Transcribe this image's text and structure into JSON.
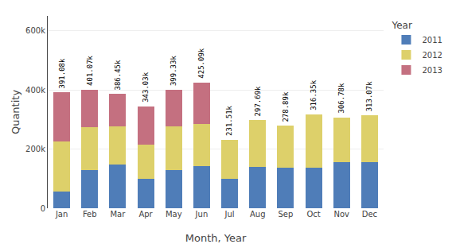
{
  "chart_data": {
    "type": "bar",
    "stacked": true,
    "xlabel": "Month, Year",
    "ylabel": "Quantity",
    "legend_title": "Year",
    "legend": "upper right",
    "grid": "y",
    "categories": [
      "Jan",
      "Feb",
      "Mar",
      "Apr",
      "May",
      "Jun",
      "Jul",
      "Aug",
      "Sep",
      "Oct",
      "Nov",
      "Dec"
    ],
    "series": [
      {
        "name": "2011",
        "color": "#4f7db8",
        "values": [
          57000,
          130000,
          147000,
          100000,
          128000,
          143000,
          100000,
          140000,
          138000,
          138000,
          155000,
          155000
        ]
      },
      {
        "name": "2012",
        "color": "#ddd06a",
        "values": [
          168000,
          143000,
          130000,
          115000,
          150000,
          143000,
          131510,
          157690,
          140890,
          178350,
          151780,
          158070
        ]
      },
      {
        "name": "2013",
        "color": "#c47080",
        "values": [
          166080,
          128070,
          109450,
          128030,
          121330,
          139090,
          0,
          0,
          0,
          0,
          0,
          0
        ]
      }
    ],
    "totals": {
      "values": [
        391080,
        401070,
        386450,
        343030,
        399330,
        425090,
        231510,
        297690,
        278890,
        316350,
        306780,
        313070
      ],
      "value_labels": [
        "391.08k",
        "401.07k",
        "386.45k",
        "343.03k",
        "399.33k",
        "425.09k",
        "231.51k",
        "297.69k",
        "278.89k",
        "316.35k",
        "306.78k",
        "313.07k"
      ]
    },
    "ylim": [
      0,
      650000
    ],
    "yticks": [
      0,
      {
        "value": 200000,
        "label": "200k"
      },
      {
        "value": 400000,
        "label": "400k"
      },
      {
        "value": 600000,
        "label": "600k"
      }
    ]
  }
}
